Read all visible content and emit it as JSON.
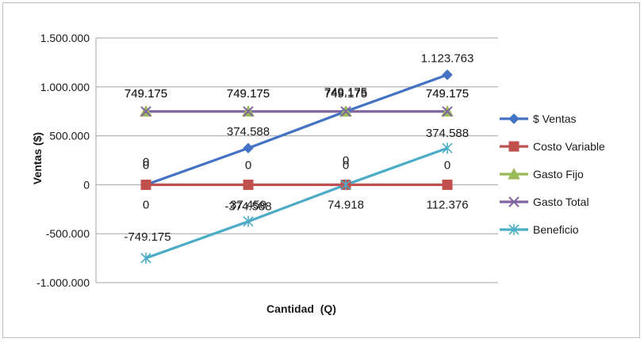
{
  "chart_data": {
    "type": "line",
    "title": "",
    "xlabel": "Cantidad  (Q)",
    "ylabel": "Ventas ($)",
    "ylim": [
      -1000000,
      1500000
    ],
    "yticks": [
      -1000000,
      -500000,
      0,
      500000,
      1000000,
      1500000
    ],
    "ytick_labels": [
      "-1.000.000",
      "-500.000",
      "0",
      "500.000",
      "1.000.000",
      "1.500.000"
    ],
    "grid": "horizontal",
    "legend_position": "right",
    "categories": [
      "0",
      "37.459",
      "74.918",
      "112.376"
    ],
    "series": [
      {
        "name": "$ Ventas",
        "values": [
          0,
          374588,
          749175,
          1123763
        ],
        "labels": [
          "0",
          "374.588",
          "749.175",
          "1.123.763"
        ],
        "color": "#4472c4",
        "marker": "diamond"
      },
      {
        "name": "Costo Variable",
        "values": [
          0,
          0,
          0,
          0
        ],
        "labels": [
          "0",
          "0",
          "0",
          "0"
        ],
        "color": "#c0504d",
        "marker": "square"
      },
      {
        "name": "Gasto Fijo",
        "values": [
          749175,
          749175,
          749175,
          749175
        ],
        "labels": [
          "749.175",
          "749.175",
          "749.175",
          "749.175"
        ],
        "color": "#9bbb59",
        "marker": "triangle"
      },
      {
        "name": "Gasto Total",
        "values": [
          749175,
          749175,
          749175,
          749175
        ],
        "labels": [
          "749.175",
          "749.175",
          "749.175",
          "749.175"
        ],
        "color": "#8064a2",
        "marker": "x"
      },
      {
        "name": "Beneficio",
        "values": [
          -749175,
          -374588,
          0,
          374588
        ],
        "labels": [
          "-749.175",
          "-374.588",
          "0",
          "374.588"
        ],
        "color": "#4bacc6",
        "marker": "star"
      }
    ]
  }
}
